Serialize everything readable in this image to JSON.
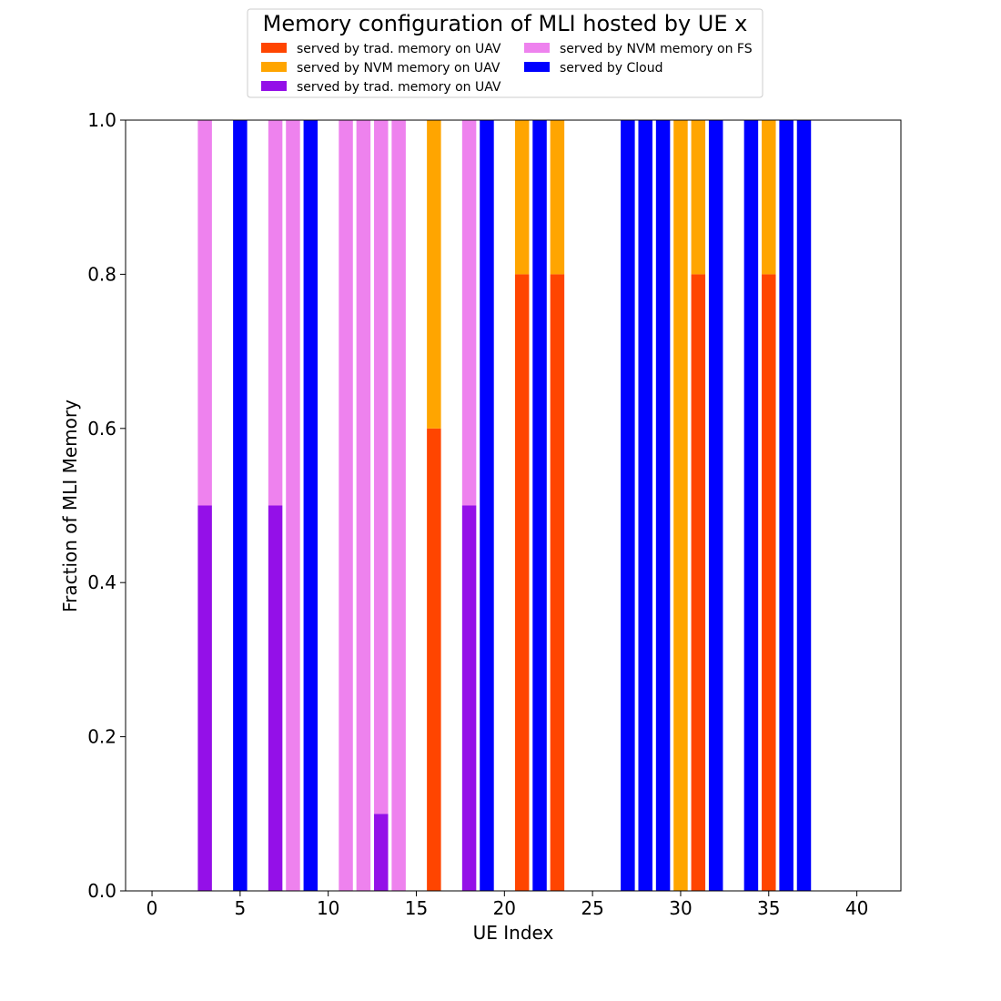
{
  "chart_data": {
    "type": "bar",
    "title": "Memory configuration of MLI hosted by UE x",
    "xlabel": "UE Index",
    "ylabel": "Fraction of MLI Memory",
    "xlim": [
      -1.5,
      42.5
    ],
    "ylim": [
      0,
      1.0
    ],
    "xticks": [
      0,
      5,
      10,
      15,
      20,
      25,
      30,
      35,
      40
    ],
    "yticks": [
      0.0,
      0.2,
      0.4,
      0.6,
      0.8,
      1.0
    ],
    "xtick_labels": [
      "0",
      "5",
      "10",
      "15",
      "20",
      "25",
      "30",
      "35",
      "40"
    ],
    "ytick_labels": [
      "0.0",
      "0.2",
      "0.4",
      "0.6",
      "0.8",
      "1.0"
    ],
    "grid": false,
    "legend_position": "top-center (above plot), 2 columns",
    "stacked": true,
    "series": [
      {
        "name": "served by trad. memory on UAV",
        "key": "trad_uav",
        "color": "#ff4500"
      },
      {
        "name": "served by NVM memory on UAV",
        "key": "nvm_uav",
        "color": "#ffa500"
      },
      {
        "name": "served by trad. memory on UAV",
        "key": "trad_uav_purple",
        "color": "#9410e8"
      },
      {
        "name": "served by NVM memory on FS",
        "key": "nvm_fs",
        "color": "#ee82ee"
      },
      {
        "name": "served by Cloud",
        "key": "cloud",
        "color": "#0000ff"
      }
    ],
    "stack_order": [
      "trad_uav",
      "nvm_uav",
      "trad_uav_purple",
      "nvm_fs",
      "cloud"
    ],
    "bars": [
      {
        "x": 3,
        "trad_uav_purple": 0.5,
        "nvm_fs": 0.5
      },
      {
        "x": 5,
        "cloud": 1.0
      },
      {
        "x": 7,
        "trad_uav_purple": 0.5,
        "nvm_fs": 0.5
      },
      {
        "x": 8,
        "nvm_fs": 1.0
      },
      {
        "x": 9,
        "cloud": 1.0
      },
      {
        "x": 11,
        "nvm_fs": 1.0
      },
      {
        "x": 12,
        "nvm_fs": 1.0
      },
      {
        "x": 13,
        "trad_uav_purple": 0.1,
        "nvm_fs": 0.9
      },
      {
        "x": 14,
        "nvm_fs": 1.0
      },
      {
        "x": 16,
        "trad_uav": 0.6,
        "nvm_uav": 0.4
      },
      {
        "x": 18,
        "trad_uav_purple": 0.5,
        "nvm_fs": 0.5
      },
      {
        "x": 19,
        "cloud": 1.0
      },
      {
        "x": 21,
        "trad_uav": 0.8,
        "nvm_uav": 0.2
      },
      {
        "x": 22,
        "cloud": 1.0
      },
      {
        "x": 23,
        "trad_uav": 0.8,
        "nvm_uav": 0.2
      },
      {
        "x": 27,
        "cloud": 1.0
      },
      {
        "x": 28,
        "cloud": 1.0
      },
      {
        "x": 29,
        "cloud": 1.0
      },
      {
        "x": 30,
        "nvm_uav": 1.0
      },
      {
        "x": 31,
        "trad_uav": 0.8,
        "nvm_uav": 0.2
      },
      {
        "x": 32,
        "cloud": 1.0
      },
      {
        "x": 34,
        "cloud": 1.0
      },
      {
        "x": 35,
        "trad_uav": 0.8,
        "nvm_uav": 0.2
      },
      {
        "x": 36,
        "cloud": 1.0
      },
      {
        "x": 37,
        "cloud": 1.0
      }
    ]
  }
}
